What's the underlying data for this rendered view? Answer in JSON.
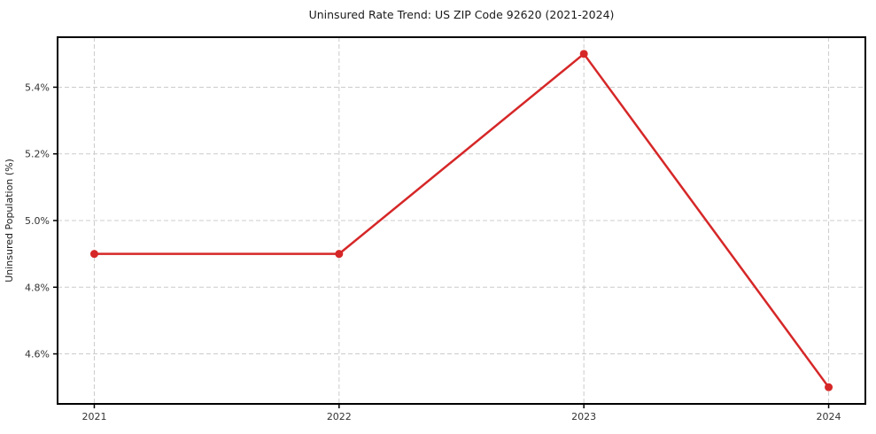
{
  "chart_data": {
    "type": "line",
    "title": "Uninsured Rate Trend: US ZIP Code 92620 (2021-2024)",
    "ylabel": "Uninsured Population (%)",
    "xlabel": "",
    "x": [
      2021,
      2022,
      2023,
      2024
    ],
    "values": [
      4.9,
      4.9,
      5.5,
      4.5
    ],
    "x_tick_labels": [
      "2021",
      "2022",
      "2023",
      "2024"
    ],
    "y_ticks": [
      4.6,
      4.8,
      5.0,
      5.2,
      5.4
    ],
    "y_tick_labels": [
      "4.6%",
      "4.8%",
      "5.0%",
      "5.2%",
      "5.4%"
    ],
    "xlim": [
      2020.85,
      2024.15
    ],
    "ylim": [
      4.45,
      5.55
    ],
    "grid": true,
    "legend": "none",
    "line_color": "#d62728",
    "marker_color": "#d62728",
    "grid_color": "#cccccc",
    "axis_color": "#000000",
    "tick_label_color": "#333333"
  }
}
